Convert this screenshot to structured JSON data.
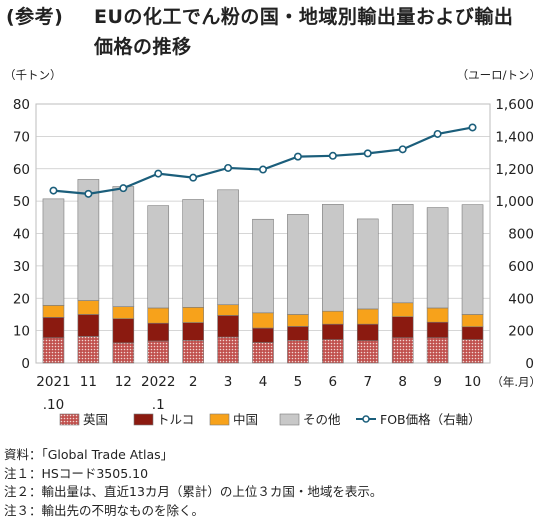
{
  "title": {
    "lead": "(参考)",
    "text": "EUの化工でん粉の国・地域別輸出量および輸出価格の推移"
  },
  "chart_data": {
    "type": "bar",
    "stacked": true,
    "left_unit": "（千トン）",
    "right_unit": "（ユーロ/トン）",
    "x_unit": "（年.月）",
    "categories": [
      "2021.10",
      "11",
      "12",
      "2022.1",
      "2",
      "3",
      "4",
      "5",
      "6",
      "7",
      "8",
      "9",
      "10"
    ],
    "tick_labels": [
      {
        "line1": "2021",
        "line2": ".10"
      },
      {
        "line1": "11",
        "line2": ""
      },
      {
        "line1": "12",
        "line2": ""
      },
      {
        "line1": "2022",
        "line2": ".1"
      },
      {
        "line1": "2",
        "line2": ""
      },
      {
        "line1": "3",
        "line2": ""
      },
      {
        "line1": "4",
        "line2": ""
      },
      {
        "line1": "5",
        "line2": ""
      },
      {
        "line1": "6",
        "line2": ""
      },
      {
        "line1": "7",
        "line2": ""
      },
      {
        "line1": "8",
        "line2": ""
      },
      {
        "line1": "9",
        "line2": ""
      },
      {
        "line1": "10",
        "line2": ""
      }
    ],
    "ylim_left": [
      0,
      80
    ],
    "yticks_left": [
      "0",
      "10",
      "20",
      "30",
      "40",
      "50",
      "60",
      "70",
      "80"
    ],
    "ylim_right": [
      0,
      1600
    ],
    "yticks_right": [
      "0",
      "200",
      "400",
      "600",
      "800",
      "1,000",
      "1,200",
      "1,400",
      "1,600"
    ],
    "grid": true,
    "legend_position": "bottom",
    "series": [
      {
        "name": "英国",
        "kind": "bar",
        "color": "#c0504d",
        "pattern": "dots",
        "values": [
          7.8,
          8.2,
          6.2,
          6.8,
          7.0,
          8.0,
          6.3,
          7.0,
          7.2,
          6.9,
          7.8,
          7.8,
          7.2
        ]
      },
      {
        "name": "トルコ",
        "kind": "bar",
        "color": "#8b1a10",
        "values": [
          6.3,
          6.8,
          7.5,
          5.5,
          5.5,
          6.7,
          4.5,
          4.3,
          4.8,
          5.1,
          6.5,
          4.8,
          4.0
        ]
      },
      {
        "name": "中国",
        "kind": "bar",
        "color": "#f7a21b",
        "values": [
          3.7,
          4.3,
          3.7,
          4.7,
          4.7,
          3.3,
          4.7,
          3.7,
          4.0,
          4.7,
          4.3,
          4.4,
          3.8
        ]
      },
      {
        "name": "その他",
        "kind": "bar",
        "color": "#c8c8c8",
        "values": [
          32.9,
          37.4,
          37.1,
          31.6,
          33.3,
          35.5,
          28.9,
          30.9,
          33.0,
          27.8,
          30.4,
          31.0,
          33.9
        ]
      },
      {
        "name": "FOB価格（右軸）",
        "kind": "line",
        "color": "#1b5e7b",
        "axis": "right",
        "values": [
          1065,
          1045,
          1080,
          1170,
          1145,
          1205,
          1195,
          1275,
          1280,
          1295,
          1320,
          1415,
          1455
        ]
      }
    ]
  },
  "notes": [
    "資料：「Global Trade Atlas」",
    "注１：HSコード3505.10",
    "注２：輸出量は、直近13カ月（累計）の上位３カ国・地域を表示。",
    "注３：輸出先の不明なものを除く。"
  ]
}
